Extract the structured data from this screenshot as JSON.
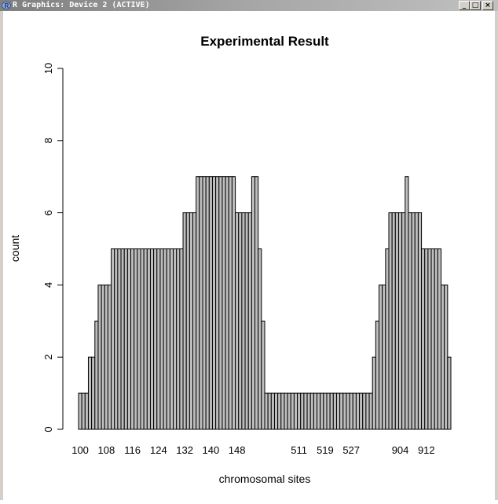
{
  "window": {
    "title": "R Graphics: Device 2 (ACTIVE)",
    "minimize_icon": "minimize-icon",
    "maximize_icon": "maximize-icon",
    "close_icon": "close-icon"
  },
  "chart_data": {
    "type": "bar",
    "title": "Experimental Result",
    "xlabel": "chromosomal sites",
    "ylabel": "count",
    "ylim": [
      0,
      10
    ],
    "yticks": [
      0,
      2,
      4,
      6,
      8,
      10
    ],
    "xtick_labels": [
      "100",
      "108",
      "116",
      "124",
      "132",
      "140",
      "148",
      "511",
      "519",
      "527",
      "904",
      "912"
    ],
    "bar_fill": "#bebebe",
    "bar_stroke": "#000000",
    "values": [
      1,
      1,
      1,
      2,
      2,
      3,
      4,
      4,
      4,
      4,
      5,
      5,
      5,
      5,
      5,
      5,
      5,
      5,
      5,
      5,
      5,
      5,
      5,
      5,
      5,
      5,
      5,
      5,
      5,
      5,
      5,
      5,
      6,
      6,
      6,
      6,
      7,
      7,
      7,
      7,
      7,
      7,
      7,
      7,
      7,
      7,
      7,
      7,
      6,
      6,
      6,
      6,
      6,
      7,
      7,
      5,
      3,
      1,
      1,
      1,
      1,
      1,
      1,
      1,
      1,
      1,
      1,
      1,
      1,
      1,
      1,
      1,
      1,
      1,
      1,
      1,
      1,
      1,
      1,
      1,
      1,
      1,
      1,
      1,
      1,
      1,
      1,
      1,
      1,
      1,
      2,
      3,
      4,
      4,
      5,
      6,
      6,
      6,
      6,
      6,
      7,
      6,
      6,
      6,
      6,
      5,
      5,
      5,
      5,
      5,
      5,
      4,
      4,
      2
    ]
  }
}
